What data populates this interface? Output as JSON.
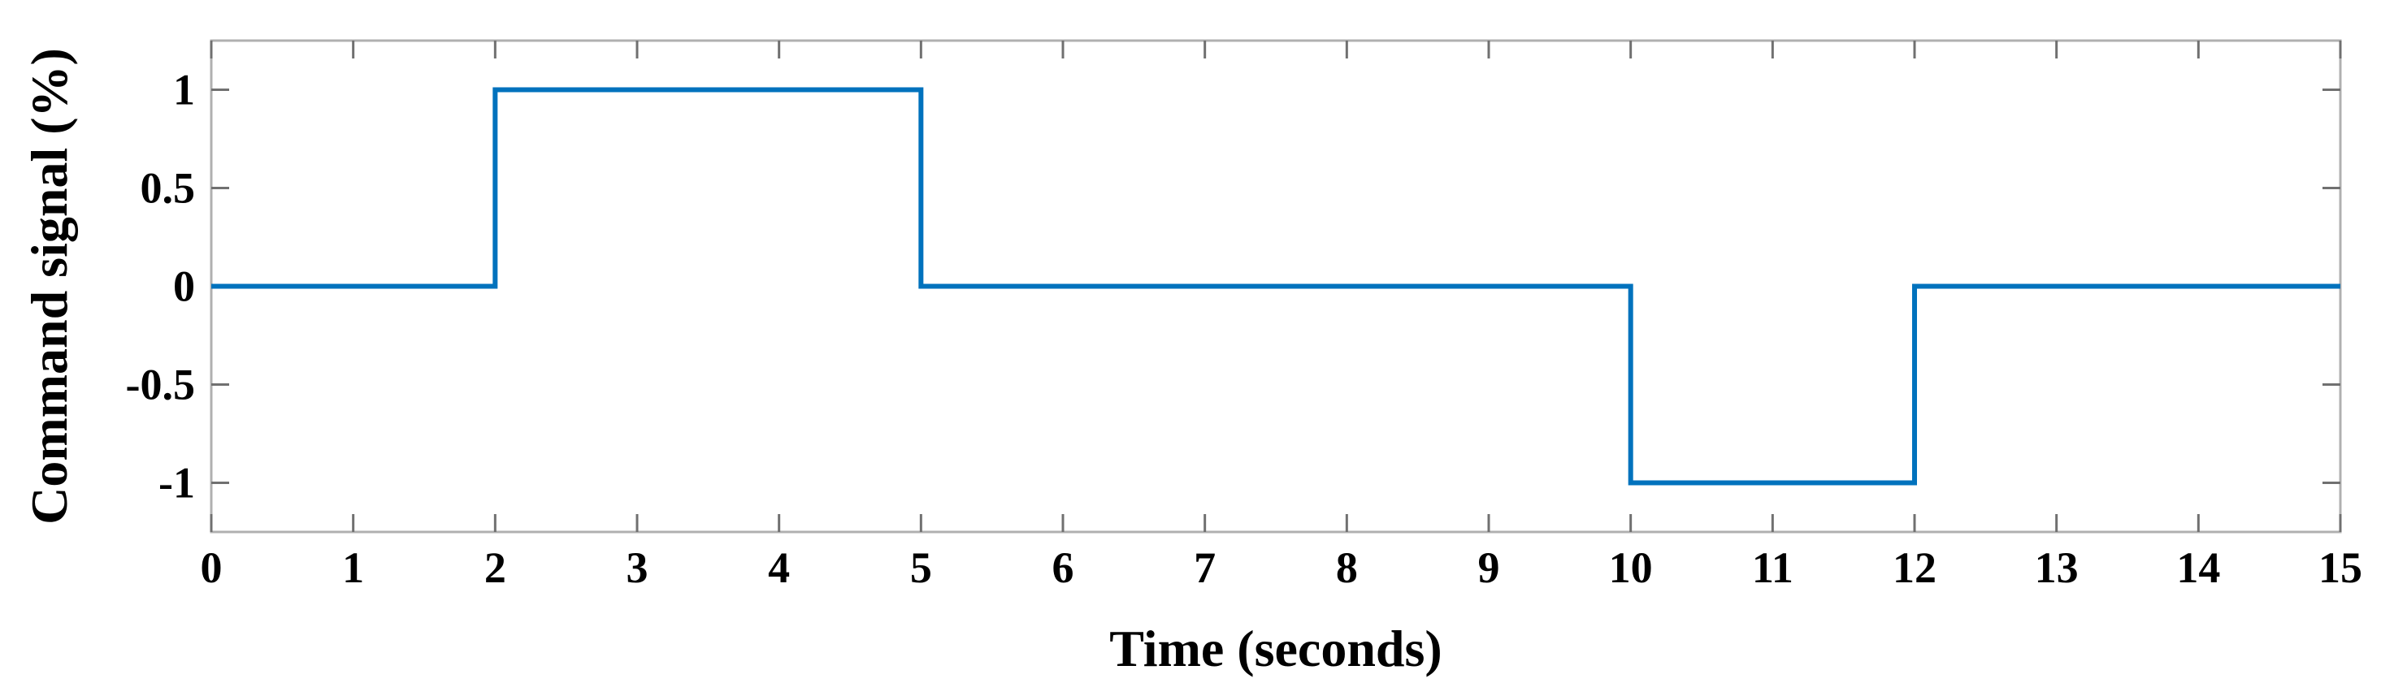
{
  "chart_data": {
    "type": "line",
    "title": "",
    "xlabel": "Time (seconds)",
    "ylabel": "Command signal (%)",
    "xlim": [
      0,
      15
    ],
    "ylim": [
      -1.25,
      1.25
    ],
    "x_ticks": [
      0,
      1,
      2,
      3,
      4,
      5,
      6,
      7,
      8,
      9,
      10,
      11,
      12,
      13,
      14,
      15
    ],
    "x_tick_labels": [
      "0",
      "1",
      "2",
      "3",
      "4",
      "5",
      "6",
      "7",
      "8",
      "9",
      "10",
      "11",
      "12",
      "13",
      "14",
      "15"
    ],
    "y_ticks": [
      1,
      0.5,
      0,
      -0.5,
      -1
    ],
    "y_tick_labels": [
      "1",
      "0.5",
      "0",
      "-0.5",
      "-1"
    ],
    "grid": false,
    "legend": "none",
    "series": [
      {
        "color": "#0072BD",
        "x": [
          0,
          2,
          2,
          5,
          5,
          10,
          10,
          12,
          12,
          15
        ],
        "y": [
          0,
          0,
          1,
          1,
          0,
          0,
          -1,
          -1,
          0,
          0
        ]
      }
    ]
  }
}
